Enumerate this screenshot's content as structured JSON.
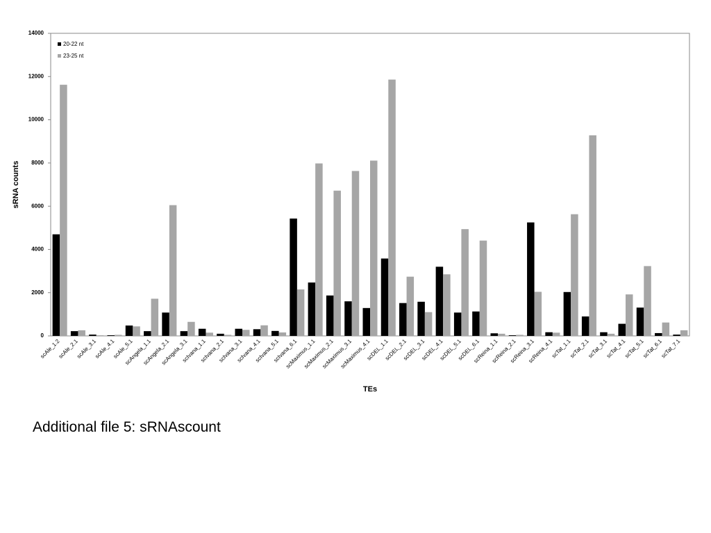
{
  "chart_data": {
    "type": "bar",
    "x_label": "TEs",
    "y_label": "sRNA counts",
    "caption": "Additional file 5: sRNAscount",
    "categories": [
      "scAle_1.2",
      "scAle_2.1",
      "scAle_3.1",
      "scAle_4.1",
      "scAle_5.1",
      "scAngela_1.1",
      "scAngela_2.1",
      "scAngela_3.1",
      "scIvana_1.1",
      "scIvana_2.1",
      "scIvana_3.1",
      "scIvana_4.1",
      "scIvana_5.1",
      "scIvana_6.1",
      "scMaximus_1.1",
      "scMaximus_2.1",
      "scMaximus_3.1",
      "scMaximus_4.1",
      "scDEL_1.1",
      "scDEL_2.1",
      "scDEL_3.1",
      "scDEL_4.1",
      "scDEL_5.1",
      "scDEL_6.1",
      "scReina_1.1",
      "scReina_2.1",
      "scReina_3.1",
      "scReina_4.1",
      "scTat_1.1",
      "scTat_2.1",
      "scTat_3.1",
      "scTat_4.1",
      "scTat_5.1",
      "scTat_6.1",
      "scTat_7.1"
    ],
    "series": [
      {
        "name": "20-22 nt",
        "color": "#000000",
        "values": [
          4700,
          220,
          60,
          30,
          480,
          220,
          1080,
          220,
          330,
          100,
          330,
          310,
          230,
          5430,
          2470,
          1870,
          1600,
          1290,
          3580,
          1520,
          1580,
          3200,
          1080,
          1130,
          120,
          30,
          5250,
          170,
          2030,
          900,
          170,
          560,
          1310,
          130,
          60
        ]
      },
      {
        "name": "23-25 nt",
        "color": "#a6a6a6",
        "values": [
          11620,
          260,
          30,
          50,
          440,
          1720,
          6050,
          650,
          150,
          50,
          280,
          490,
          160,
          2150,
          7980,
          6720,
          7630,
          8110,
          11860,
          2740,
          1100,
          2850,
          4940,
          4410,
          100,
          50,
          2040,
          150,
          5630,
          9280,
          100,
          1920,
          3230,
          620,
          260
        ]
      }
    ],
    "ylim": [
      0,
      14000
    ],
    "yticks": [
      0,
      2000,
      4000,
      6000,
      8000,
      10000,
      12000,
      14000
    ],
    "legend": "top-left"
  }
}
